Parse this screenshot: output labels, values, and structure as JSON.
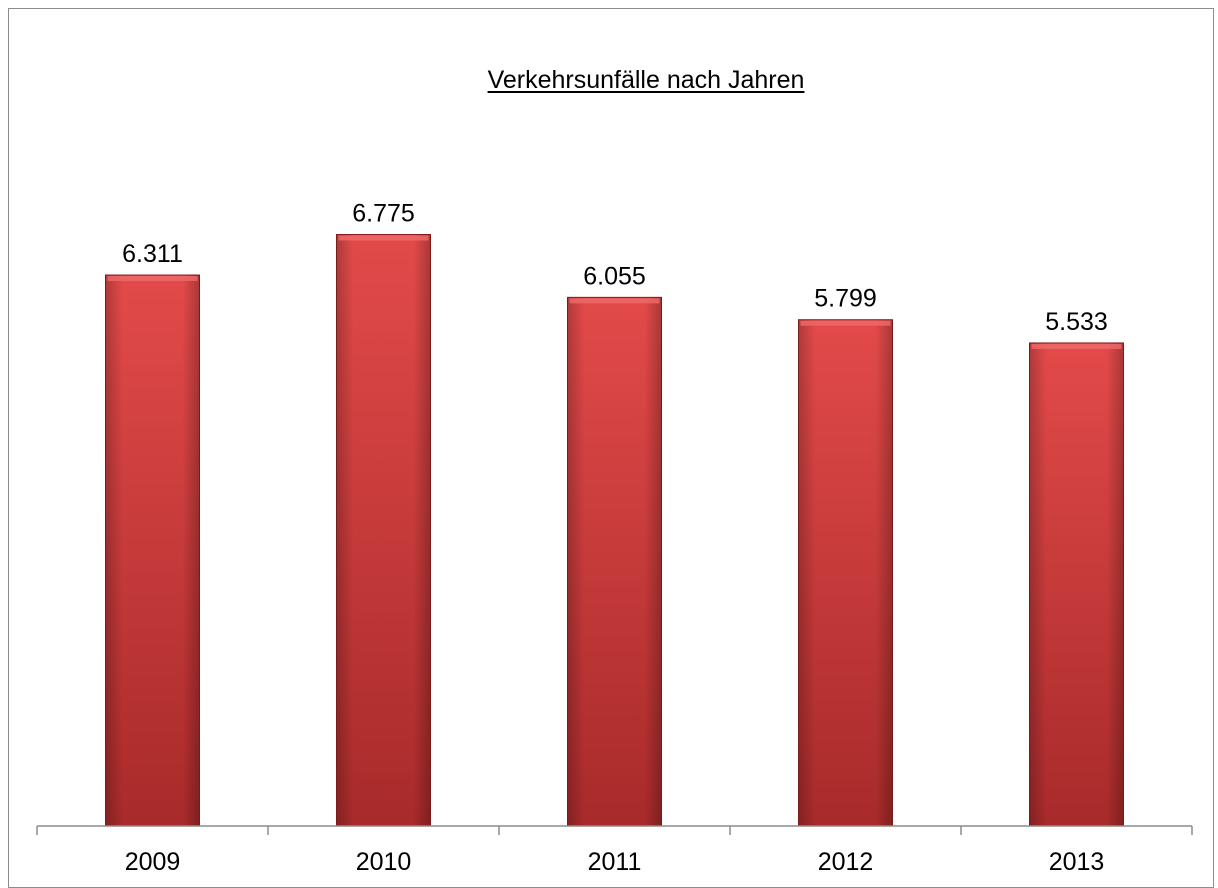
{
  "chart_data": {
    "type": "bar",
    "title": "Verkehrsunfälle nach Jahren",
    "categories": [
      "2009",
      "2010",
      "2011",
      "2012",
      "2013"
    ],
    "values": [
      6311,
      6775,
      6055,
      5799,
      5533
    ],
    "value_labels": [
      "6.311",
      "6.775",
      "6.055",
      "5.799",
      "5.533"
    ],
    "xlabel": "",
    "ylabel": "",
    "ylim": [
      0,
      7800
    ],
    "grid": false,
    "legend": "none",
    "colors": {
      "bar": "#d64040",
      "bar_light": "#e05555",
      "bar_dark": "#9e2626",
      "axis": "#8c8c8c",
      "text": "#000000"
    }
  }
}
